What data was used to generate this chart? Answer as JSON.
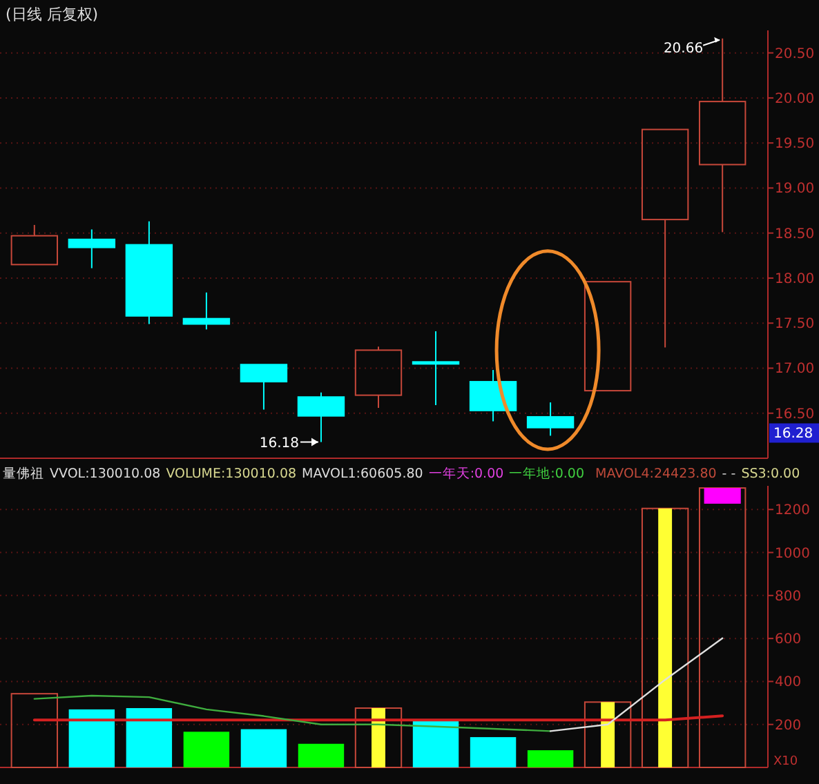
{
  "chart_data": [
    {
      "type": "candlestick",
      "title": "(日线 后复权)",
      "categories": [
        null,
        null,
        null,
        null,
        null,
        null,
        null,
        null,
        null,
        null,
        null,
        null,
        null
      ],
      "ohlc": [
        [
          18.15,
          18.59,
          18.15,
          18.47
        ],
        [
          18.43,
          18.54,
          18.11,
          18.34
        ],
        [
          18.37,
          18.63,
          17.49,
          17.58
        ],
        [
          17.55,
          17.84,
          17.43,
          17.49
        ],
        [
          17.04,
          17.04,
          16.54,
          16.85
        ],
        [
          16.68,
          16.73,
          16.18,
          16.47
        ],
        [
          16.7,
          17.24,
          16.56,
          17.2
        ],
        [
          17.07,
          17.41,
          16.59,
          17.05
        ],
        [
          16.85,
          16.98,
          16.41,
          16.53
        ],
        [
          16.46,
          16.62,
          16.25,
          16.34
        ],
        [
          16.75,
          17.96,
          16.75,
          17.96
        ],
        [
          18.65,
          19.65,
          17.23,
          19.65
        ],
        [
          19.26,
          20.66,
          18.51,
          19.96
        ]
      ],
      "ylim": [
        16.0,
        20.75
      ],
      "yticks": [
        {
          "value": 16.5,
          "label": "16.50"
        },
        {
          "value": 17,
          "label": "17.00"
        },
        {
          "value": 17.5,
          "label": "17.50"
        },
        {
          "value": 18,
          "label": "18.00"
        },
        {
          "value": 18.5,
          "label": "18.50"
        },
        {
          "value": 19,
          "label": "19.00"
        },
        {
          "value": 19.5,
          "label": "19.50"
        },
        {
          "value": 20,
          "label": "20.00"
        },
        {
          "value": 20.5,
          "label": "20.50"
        }
      ],
      "grid": "y",
      "annotations": [
        "20.66",
        "16.18",
        {
          "text": "16.28",
          "y": 16.28
        }
      ]
    },
    {
      "type": "bar",
      "title": "量佛祖",
      "ylabel": "X10",
      "categories": [
        null,
        null,
        null,
        null,
        null,
        null,
        null,
        null,
        null,
        null,
        null,
        null,
        null
      ],
      "series": [
        {
          "type": "bar",
          "colors": [
            "#c8483a",
            "#00ffff",
            "#00ffff",
            "#00ff00",
            "#00ffff",
            "#00ff00",
            "#c8483a",
            "#00ffff",
            "#00ffff",
            "#00ff00",
            "#c8483a",
            "#c8483a",
            "#c8483a"
          ],
          "values": [
            343,
            270,
            276,
            166,
            178,
            110,
            276,
            221,
            141,
            80,
            304,
            1205,
            1300
          ]
        },
        {
          "type": "bar",
          "color": "#ffff33",
          "values": [
            null,
            null,
            null,
            null,
            null,
            null,
            276,
            null,
            null,
            null,
            304,
            1205,
            null
          ]
        },
        {
          "type": "bar",
          "color": "#ff00ff",
          "base": [
            null,
            null,
            null,
            null,
            null,
            null,
            null,
            null,
            null,
            null,
            null,
            null,
            1227
          ],
          "values": [
            null,
            null,
            null,
            null,
            null,
            null,
            null,
            null,
            null,
            null,
            null,
            null,
            73
          ]
        },
        {
          "type": "line",
          "color": "#d42020",
          "values": [
            221,
            221,
            221,
            221,
            221,
            221,
            221,
            221,
            221,
            221,
            221,
            221,
            240
          ]
        },
        {
          "type": "line",
          "color": "#3fae3f",
          "values": [
            319,
            334,
            327,
            270,
            239,
            200,
            200,
            190,
            180,
            169,
            null,
            null,
            null
          ]
        },
        {
          "type": "line",
          "color": "#e0e0e0",
          "values": [
            null,
            null,
            null,
            null,
            null,
            null,
            null,
            null,
            null,
            169,
            200,
            408,
            601
          ]
        }
      ],
      "ylim": [
        0,
        1310
      ],
      "yticks": [
        200,
        400,
        600,
        800,
        1000,
        1200
      ],
      "grid": "y",
      "annotations": [
        "VVOL:130010.08",
        "VOLUME:130010.08",
        "MAVOL1:60605.80",
        "一年天:0.00",
        "一年地:0.00",
        "MAVOL4:24423.80",
        "- -",
        "SS3:0.00"
      ]
    }
  ]
}
